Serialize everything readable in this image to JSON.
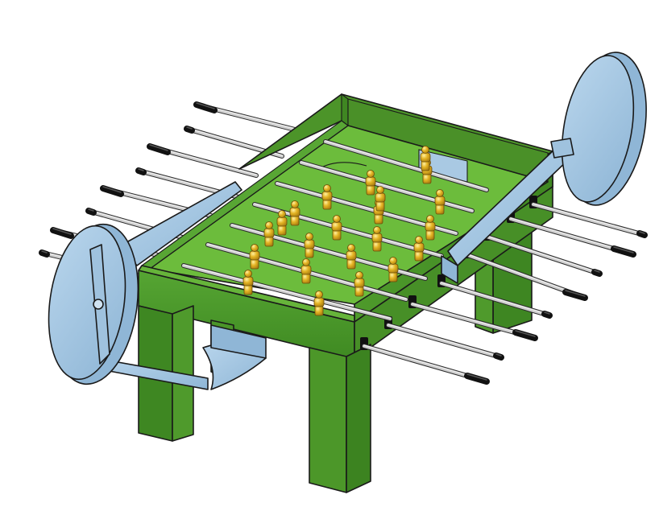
{
  "model": {
    "object": "foosball-table",
    "colors": {
      "table_body": "#4f9a2c",
      "table_top": "#5aa83a",
      "table_dark": "#3a7a1e",
      "play_surface": "#6fbf3f",
      "frame_blue": "#a9c9e3",
      "frame_blue_dark": "#7da6c8",
      "rod": "#c8c8c8",
      "grip": "#1a1a1a",
      "player_gold": "#e0b020",
      "player_gold_dark": "#a87c10",
      "edge": "#1a1a1a"
    },
    "rod_count_left": 8,
    "rod_count_right": 8,
    "player_count": 22
  }
}
